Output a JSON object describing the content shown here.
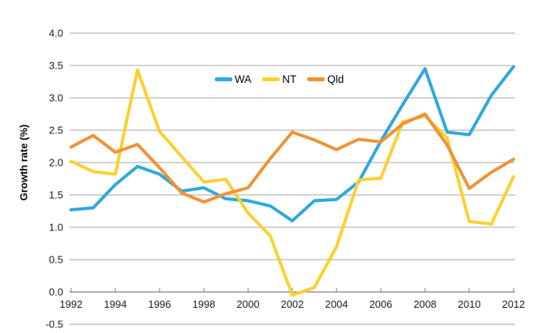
{
  "chart_data": {
    "type": "line",
    "title": "",
    "xlabel": "",
    "ylabel": "Growth rate (%)",
    "ylim": [
      -0.5,
      4.0
    ],
    "grid": "horizontal",
    "legend_position": "top-center",
    "yticks": [
      4.0,
      3.5,
      3.0,
      2.5,
      2.0,
      1.5,
      1.0,
      0.5,
      0.0,
      -0.5
    ],
    "ytick_labels": [
      "4.0",
      "3.5",
      "3.0",
      "2.5",
      "2.0",
      "1.5",
      "1.0",
      "0.5",
      "0.0",
      "-0.5"
    ],
    "x": [
      1992,
      1993,
      1994,
      1995,
      1996,
      1997,
      1998,
      1999,
      2000,
      2001,
      2002,
      2003,
      2004,
      2005,
      2006,
      2007,
      2008,
      2009,
      2010,
      2011,
      2012
    ],
    "xticks": [
      1992,
      1994,
      1996,
      1998,
      2000,
      2002,
      2004,
      2006,
      2008,
      2010,
      2012
    ],
    "series": [
      {
        "name": "WA",
        "color": "#2FA8DC",
        "values": [
          1.27,
          1.3,
          1.66,
          1.94,
          1.82,
          1.56,
          1.61,
          1.44,
          1.41,
          1.33,
          1.1,
          1.41,
          1.43,
          1.7,
          2.33,
          2.9,
          3.45,
          2.47,
          2.43,
          3.04,
          3.48
        ]
      },
      {
        "name": "NT",
        "color": "#FCD030",
        "values": [
          2.02,
          1.86,
          1.82,
          3.43,
          2.48,
          2.09,
          1.7,
          1.74,
          1.22,
          0.87,
          -0.05,
          0.07,
          0.7,
          1.73,
          1.76,
          2.63,
          2.72,
          2.38,
          1.09,
          1.05,
          1.78
        ]
      },
      {
        "name": "Qld",
        "color": "#EF9335",
        "values": [
          2.24,
          2.42,
          2.16,
          2.28,
          1.92,
          1.53,
          1.39,
          1.52,
          1.61,
          2.06,
          2.47,
          2.35,
          2.2,
          2.36,
          2.32,
          2.6,
          2.75,
          2.27,
          1.6,
          1.85,
          2.05
        ]
      }
    ],
    "colors": {
      "gridline": "#a6a6a6",
      "axis": "#808080",
      "text": "#1a1a1a"
    }
  }
}
